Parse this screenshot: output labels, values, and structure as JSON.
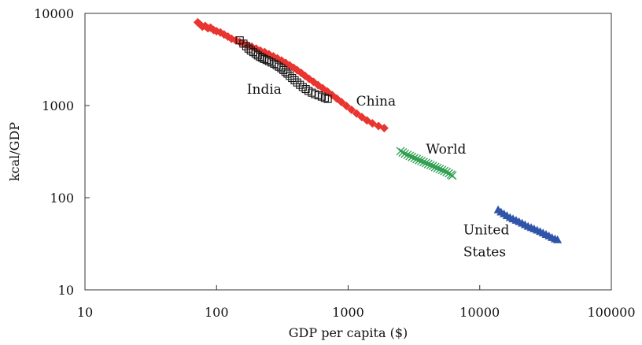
{
  "chart_data": {
    "type": "scatter",
    "xscale": "log",
    "yscale": "log",
    "xlim": [
      10,
      100000
    ],
    "ylim": [
      10,
      10000
    ],
    "xlabel": "GDP per capita ($)",
    "ylabel": "kcal/GDP",
    "grid": false,
    "xticks": [
      {
        "value": 10,
        "label": "10"
      },
      {
        "value": 100,
        "label": "100"
      },
      {
        "value": 1000,
        "label": "1000"
      },
      {
        "value": 10000,
        "label": "10000"
      },
      {
        "value": 100000,
        "label": "100000"
      }
    ],
    "yticks": [
      {
        "value": 10,
        "label": "10"
      },
      {
        "value": 100,
        "label": "100"
      },
      {
        "value": 1000,
        "label": "1000"
      },
      {
        "value": 10000,
        "label": "10000"
      }
    ],
    "series": [
      {
        "id": "china",
        "color": "#e8352f",
        "marker": "diamond",
        "points": [
          [
            72,
            8000
          ],
          [
            75,
            7600
          ],
          [
            78,
            7200
          ],
          [
            82,
            7300
          ],
          [
            86,
            6900
          ],
          [
            90,
            7000
          ],
          [
            95,
            6600
          ],
          [
            100,
            6400
          ],
          [
            107,
            6200
          ],
          [
            114,
            5900
          ],
          [
            122,
            5600
          ],
          [
            130,
            5300
          ],
          [
            140,
            5100
          ],
          [
            150,
            4900
          ],
          [
            160,
            4700
          ],
          [
            172,
            4500
          ],
          [
            185,
            4350
          ],
          [
            200,
            4150
          ],
          [
            215,
            3950
          ],
          [
            232,
            3800
          ],
          [
            250,
            3600
          ],
          [
            270,
            3420
          ],
          [
            290,
            3250
          ],
          [
            312,
            3080
          ],
          [
            335,
            2900
          ],
          [
            360,
            2730
          ],
          [
            385,
            2570
          ],
          [
            410,
            2420
          ],
          [
            440,
            2260
          ],
          [
            470,
            2100
          ],
          [
            505,
            1950
          ],
          [
            545,
            1810
          ],
          [
            590,
            1670
          ],
          [
            640,
            1540
          ],
          [
            695,
            1420
          ],
          [
            755,
            1300
          ],
          [
            820,
            1190
          ],
          [
            890,
            1090
          ],
          [
            970,
            990
          ],
          [
            1060,
            900
          ],
          [
            1160,
            820
          ],
          [
            1270,
            750
          ],
          [
            1390,
            690
          ],
          [
            1530,
            640
          ],
          [
            1700,
            600
          ],
          [
            1880,
            570
          ]
        ]
      },
      {
        "id": "india",
        "color": "#111111",
        "marker": "square",
        "points": [
          [
            150,
            5100
          ],
          [
            160,
            4700
          ],
          [
            168,
            4400
          ],
          [
            175,
            4150
          ],
          [
            182,
            3950
          ],
          [
            190,
            3800
          ],
          [
            198,
            3650
          ],
          [
            206,
            3500
          ],
          [
            214,
            3380
          ],
          [
            222,
            3300
          ],
          [
            230,
            3200
          ],
          [
            240,
            3120
          ],
          [
            250,
            3030
          ],
          [
            262,
            2930
          ],
          [
            274,
            2840
          ],
          [
            286,
            2740
          ],
          [
            298,
            2640
          ],
          [
            310,
            2540
          ],
          [
            322,
            2430
          ],
          [
            334,
            2320
          ],
          [
            346,
            2220
          ],
          [
            360,
            2100
          ],
          [
            375,
            1990
          ],
          [
            392,
            1880
          ],
          [
            410,
            1780
          ],
          [
            430,
            1680
          ],
          [
            452,
            1590
          ],
          [
            476,
            1510
          ],
          [
            500,
            1440
          ],
          [
            530,
            1380
          ],
          [
            560,
            1330
          ],
          [
            595,
            1290
          ],
          [
            630,
            1250
          ],
          [
            665,
            1210
          ],
          [
            700,
            1180
          ]
        ]
      },
      {
        "id": "world",
        "color": "#2e9e4f",
        "marker": "x",
        "points": [
          [
            2500,
            320
          ],
          [
            2600,
            310
          ],
          [
            2700,
            300
          ],
          [
            2820,
            292
          ],
          [
            2940,
            284
          ],
          [
            3060,
            277
          ],
          [
            3190,
            270
          ],
          [
            3320,
            263
          ],
          [
            3460,
            256
          ],
          [
            3600,
            250
          ],
          [
            3750,
            244
          ],
          [
            3900,
            238
          ],
          [
            4060,
            232
          ],
          [
            4230,
            226
          ],
          [
            4400,
            221
          ],
          [
            4580,
            215
          ],
          [
            4770,
            210
          ],
          [
            4960,
            205
          ],
          [
            5170,
            200
          ],
          [
            5380,
            195
          ],
          [
            5600,
            190
          ],
          [
            5830,
            184
          ],
          [
            6050,
            178
          ],
          [
            6200,
            174
          ]
        ]
      },
      {
        "id": "us",
        "color": "#2f54a8",
        "marker": "triangle",
        "points": [
          [
            13800,
            74
          ],
          [
            14500,
            70
          ],
          [
            15300,
            67
          ],
          [
            16100,
            64
          ],
          [
            17000,
            61
          ],
          [
            17900,
            59
          ],
          [
            18900,
            57
          ],
          [
            19900,
            55
          ],
          [
            21000,
            53
          ],
          [
            22100,
            51
          ],
          [
            23300,
            49
          ],
          [
            24600,
            47.5
          ],
          [
            25900,
            46
          ],
          [
            27300,
            44.5
          ],
          [
            28800,
            43
          ],
          [
            30300,
            41.5
          ],
          [
            31900,
            40
          ],
          [
            33600,
            38.5
          ],
          [
            35400,
            37
          ],
          [
            37300,
            35.8
          ],
          [
            39000,
            35
          ]
        ]
      }
    ],
    "annotations": [
      {
        "text": "India",
        "x": 170,
        "y": 1350
      },
      {
        "text": "China",
        "x": 1150,
        "y": 1000
      },
      {
        "text": "World",
        "x": 3900,
        "y": 300
      },
      {
        "text": "United",
        "x": 7500,
        "y": 40
      },
      {
        "text": "States",
        "x": 7500,
        "y": 23
      }
    ]
  }
}
